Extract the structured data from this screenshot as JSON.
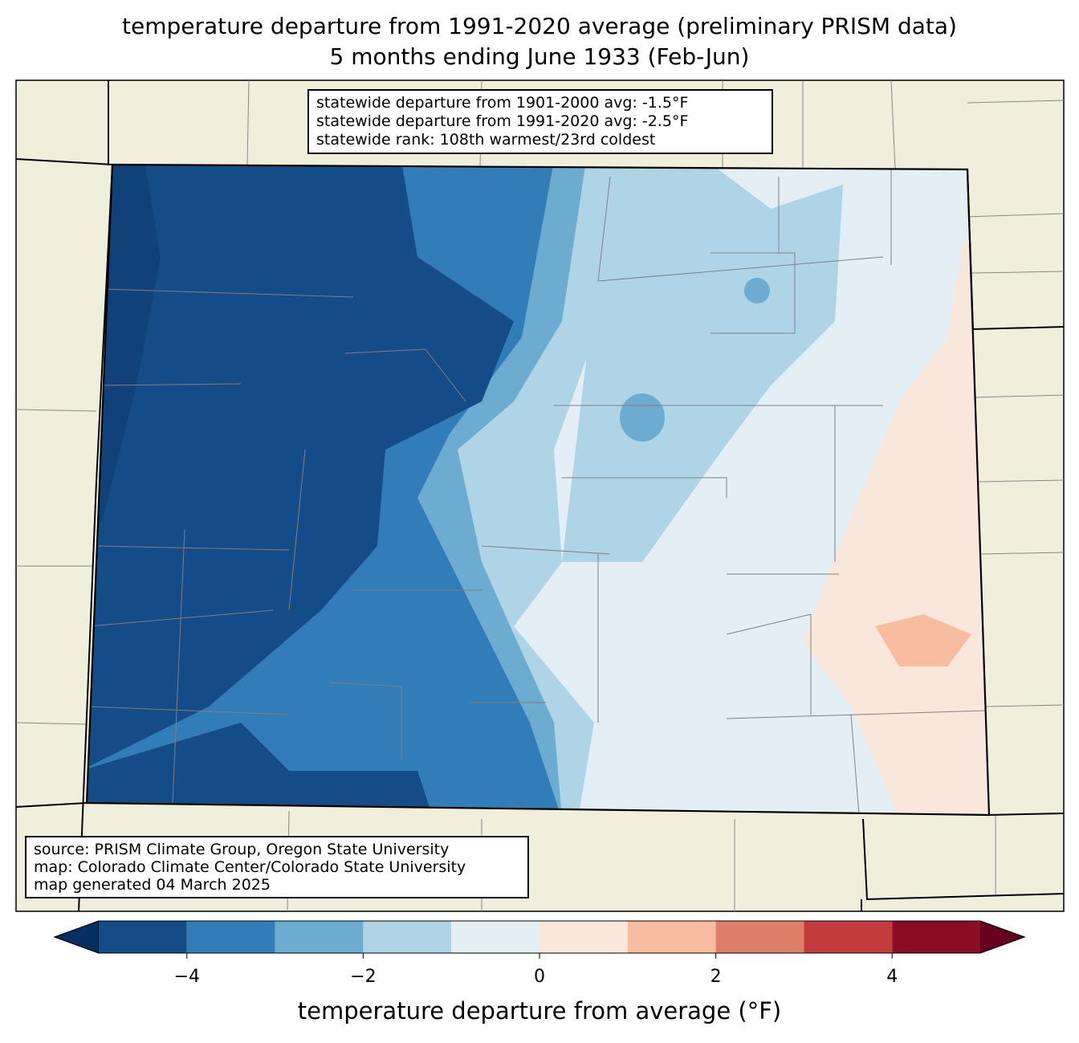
{
  "title_line1": "temperature departure from 1991-2020 average (preliminary PRISM data)",
  "title_line2": "5 months ending June 1933 (Feb-Jun)",
  "stats": {
    "line1": "statewide departure from 1901-2000 avg: -1.5°F",
    "line2": "statewide departure from 1991-2020 avg: -2.5°F",
    "line3": "statewide rank: 108th warmest/23rd coldest"
  },
  "credits": {
    "line1": "source: PRISM Climate Group, Oregon State University",
    "line2": "map: Colorado Climate Center/Colorado State University",
    "line3": "map generated 04 March 2025"
  },
  "colorbar": {
    "label": "temperature departure from average (°F)",
    "range": [
      -5,
      5
    ],
    "bins": [
      -5,
      -4,
      -3,
      -2,
      -1,
      0,
      1,
      2,
      3,
      4,
      5
    ],
    "colors": [
      "#144c87",
      "#327cb7",
      "#6bacd0",
      "#afd4e6",
      "#e4eef5",
      "#fae7dc",
      "#f8bca1",
      "#e07f69",
      "#c23b3b",
      "#8b0c25"
    ],
    "extend_low_color": "#053061",
    "extend_high_color": "#67001f",
    "ticks": [
      "−4",
      "−2",
      "0",
      "2",
      "4"
    ],
    "tick_values": [
      -4,
      -2,
      0,
      2,
      4
    ]
  },
  "colors": {
    "land": "#efefdc",
    "border": "#000000",
    "county": "#808080"
  }
}
